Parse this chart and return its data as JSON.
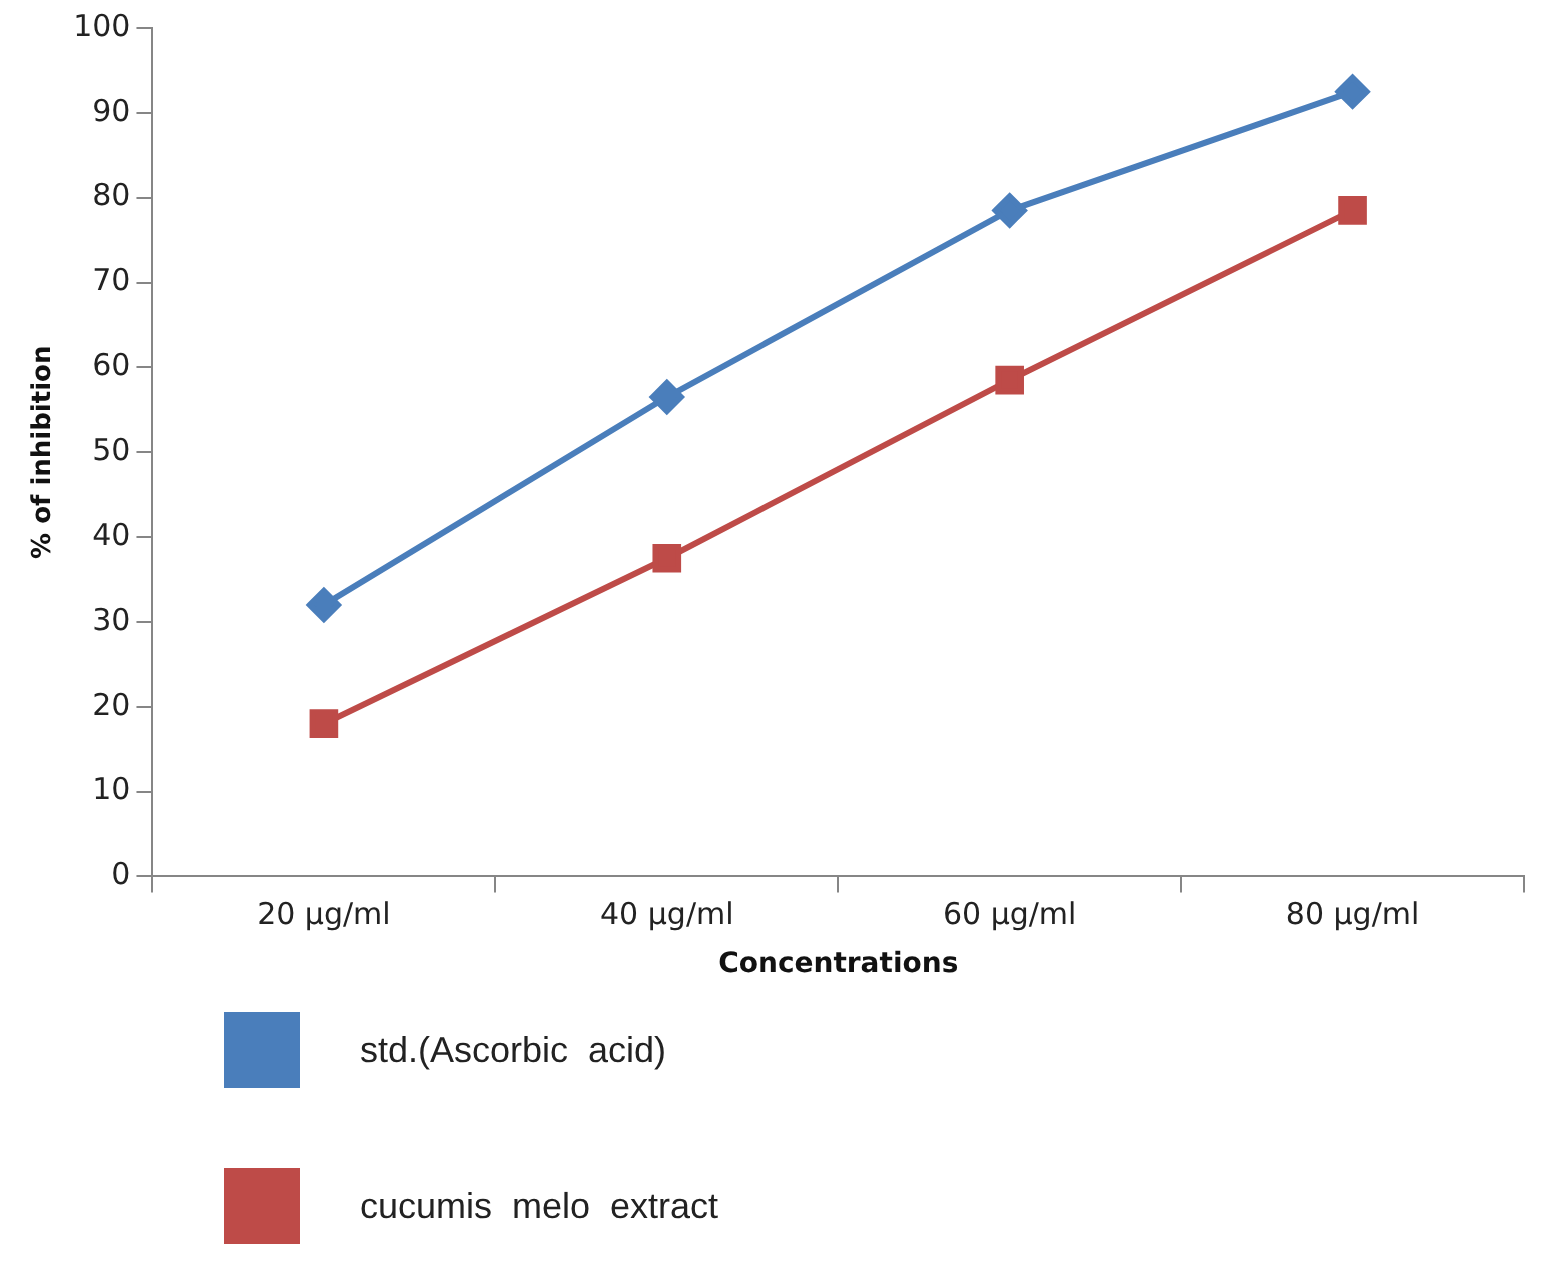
{
  "chart_data": {
    "type": "line",
    "xlabel": "Concentrations",
    "ylabel": "% of inhibition",
    "categories": [
      "20 µg/ml",
      "40 µg/ml",
      "60 µg/ml",
      "80 µg/ml"
    ],
    "series": [
      {
        "name": "std.(Ascorbic  acid)",
        "color": "#4a7ebb",
        "marker": "diamond",
        "values": [
          32,
          56.5,
          78.5,
          92.5
        ]
      },
      {
        "name": "cucumis  melo  extract",
        "color": "#be4b48",
        "marker": "square",
        "values": [
          18,
          37.5,
          58.5,
          78.5
        ]
      }
    ],
    "ylim": [
      0,
      100
    ],
    "yticks": [
      0,
      10,
      20,
      30,
      40,
      50,
      60,
      70,
      80,
      90,
      100
    ],
    "grid": false,
    "legend": "bottom"
  }
}
